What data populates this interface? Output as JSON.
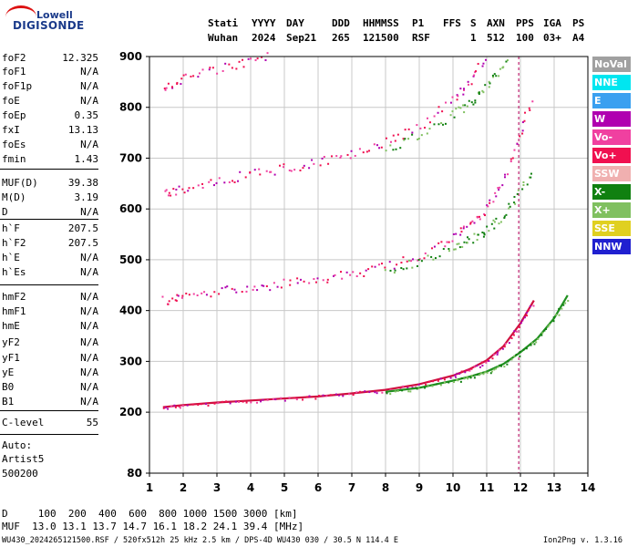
{
  "logo": {
    "line1": "Lowell",
    "line2": "DIGISONDE"
  },
  "header": {
    "labels": [
      "Stati",
      "YYYY",
      "DAY",
      "DDD",
      "HHMMSS",
      "P1",
      "FFS",
      "S",
      "AXN",
      "PPS",
      "IGA",
      "PS"
    ],
    "values": [
      "Wuhan",
      "2024",
      "Sep21",
      "265",
      "121500",
      "RSF",
      "",
      "1",
      "512",
      "100",
      "03+",
      "A4"
    ]
  },
  "params": [
    {
      "name": "foF2",
      "value": "12.325"
    },
    {
      "name": "foF1",
      "value": "N/A"
    },
    {
      "name": "foF1p",
      "value": "N/A"
    },
    {
      "name": "foE",
      "value": "N/A"
    },
    {
      "name": "foEp",
      "value": "0.35"
    },
    {
      "name": "fxI",
      "value": "13.13"
    },
    {
      "name": "foEs",
      "value": "N/A"
    },
    {
      "name": "fmin",
      "value": "1.43"
    },
    {
      "name": "MUF(D)",
      "value": "39.38"
    },
    {
      "name": "M(D)",
      "value": "3.19"
    },
    {
      "name": "D",
      "value": "N/A"
    },
    {
      "name": "h`F",
      "value": "207.5"
    },
    {
      "name": "h`F2",
      "value": "207.5"
    },
    {
      "name": "h`E",
      "value": "N/A"
    },
    {
      "name": "h`Es",
      "value": "N/A"
    },
    {
      "name": "hmF2",
      "value": "N/A"
    },
    {
      "name": "hmF1",
      "value": "N/A"
    },
    {
      "name": "hmE",
      "value": "N/A"
    },
    {
      "name": "yF2",
      "value": "N/A"
    },
    {
      "name": "yF1",
      "value": "N/A"
    },
    {
      "name": "yE",
      "value": "N/A"
    },
    {
      "name": "B0",
      "value": "N/A"
    },
    {
      "name": "B1",
      "value": "N/A"
    },
    {
      "name": "C-level",
      "value": "55"
    }
  ],
  "auto": {
    "label": "Auto:",
    "artist": "Artist5",
    "version": "500200"
  },
  "legend": [
    {
      "label": "NoVal",
      "color": "#a0a0a0"
    },
    {
      "label": "NNE",
      "color": "#00e6f0"
    },
    {
      "label": "E",
      "color": "#3aa0f0"
    },
    {
      "label": "W",
      "color": "#b000b0"
    },
    {
      "label": "Vo-",
      "color": "#f040a0"
    },
    {
      "label": "Vo+",
      "color": "#f01050"
    },
    {
      "label": "SSW",
      "color": "#f0b0b0"
    },
    {
      "label": "X-",
      "color": "#108010"
    },
    {
      "label": "X+",
      "color": "#80c060"
    },
    {
      "label": "SSE",
      "color": "#e0d020"
    },
    {
      "label": "NNW",
      "color": "#2020d0"
    }
  ],
  "footer": {
    "d_row": "D     100  200  400  600  800 1000 1500 3000 [km]",
    "muf_row": "MUF  13.0 13.1 13.7 14.7 16.1 18.2 24.1 39.4 [MHz]",
    "file_info": "WU430_2024265121500.RSF / 520fx512h 25 kHz 2.5 km / DPS-4D WU430 030 / 30.5 N 114.4 E",
    "version": "Ion2Png v. 1.3.16"
  },
  "chart_data": {
    "type": "scatter",
    "xlim": [
      1,
      14
    ],
    "ylim": [
      80,
      900
    ],
    "x_ticks": [
      1,
      2,
      3,
      4,
      5,
      6,
      7,
      8,
      9,
      10,
      11,
      12,
      13,
      14
    ],
    "y_ticks": [
      80,
      200,
      300,
      400,
      500,
      600,
      700,
      800,
      900
    ],
    "grid": true,
    "legend_placement": "right",
    "traces": [
      {
        "mode": "o",
        "x": [
          1.4,
          2.0,
          3.0,
          4.0,
          5.0,
          6.0,
          7.0,
          8.0,
          9.0,
          10.0,
          10.5,
          11.0,
          11.5,
          12.0,
          12.4
        ],
        "y": [
          210,
          214,
          219,
          223,
          227,
          231,
          237,
          244,
          255,
          272,
          285,
          302,
          330,
          375,
          420
        ]
      },
      {
        "mode": "x",
        "x": [
          8.0,
          9.0,
          10.0,
          10.5,
          11.0,
          11.5,
          12.0,
          12.5,
          13.0,
          13.4
        ],
        "y": [
          240,
          248,
          262,
          270,
          280,
          295,
          318,
          345,
          385,
          430
        ]
      }
    ],
    "marker_line": {
      "x": 11.95
    }
  }
}
